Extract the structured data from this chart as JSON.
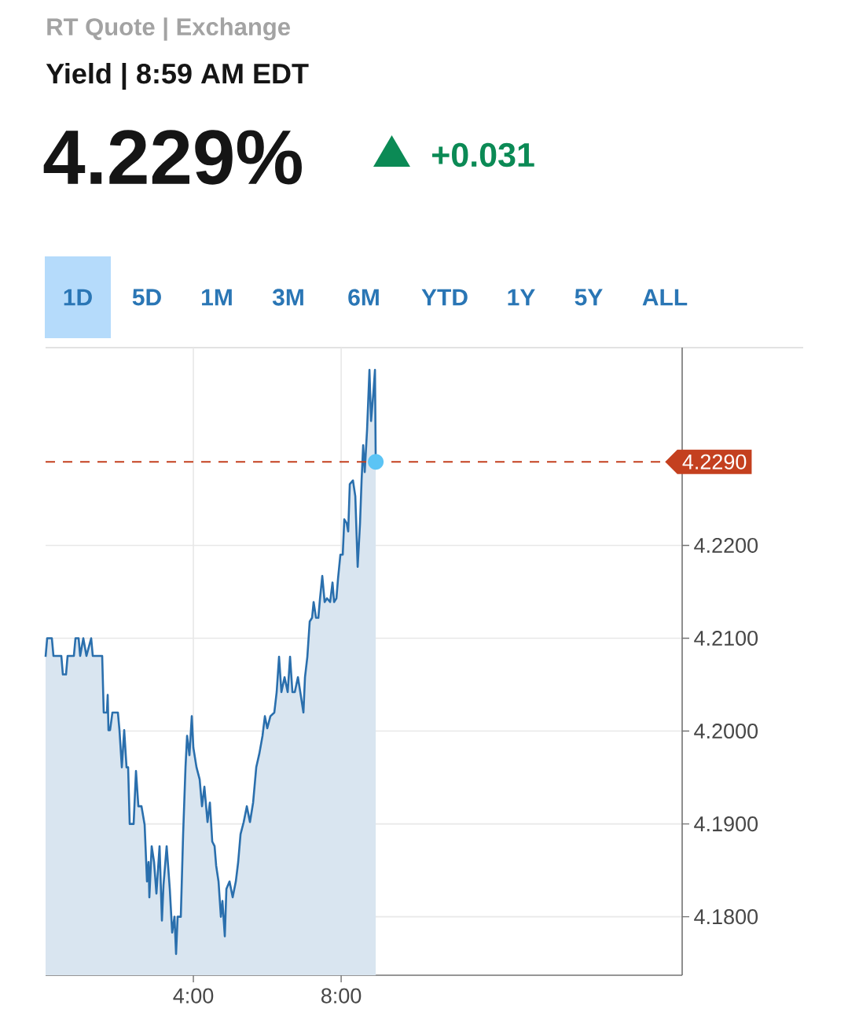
{
  "chart_data": {
    "type": "area",
    "annotations": [
      "RT Quote | Exchange",
      "Yield | 8:59 AM EDT",
      "4.229%",
      "+0.031",
      "1D",
      "5D",
      "1M",
      "3M",
      "6M",
      "YTD",
      "1Y",
      "5Y",
      "ALL"
    ],
    "xlim": [
      0,
      17.23
    ],
    "xticks": [
      {
        "value": 4,
        "label": "4:00"
      },
      {
        "value": 8,
        "label": "8:00"
      }
    ],
    "ylim": [
      4.1737,
      4.2413
    ],
    "yticks": [
      {
        "value": 4.18,
        "label": "4.1800"
      },
      {
        "value": 4.19,
        "label": "4.1900"
      },
      {
        "value": 4.2,
        "label": "4.2000"
      },
      {
        "value": 4.21,
        "label": "4.2100"
      },
      {
        "value": 4.22,
        "label": "4.2200"
      }
    ],
    "grid": true,
    "ref_lines": [
      {
        "axis": "y",
        "value": 4.229,
        "label": "4.2290",
        "color": "#c4401f",
        "line_style": "dashed"
      }
    ],
    "series": [
      {
        "color": "#2a6fad",
        "x": [
          0,
          0.043,
          0.17,
          0.213,
          0.426,
          0.468,
          0.553,
          0.596,
          0.766,
          0.809,
          0.894,
          0.936,
          1.021,
          1.106,
          1.234,
          1.277,
          1.447,
          1.532,
          1.574,
          1.66,
          1.681,
          1.702,
          1.745,
          1.809,
          1.957,
          2.0,
          2.064,
          2.128,
          2.191,
          2.234,
          2.277,
          2.383,
          2.447,
          2.511,
          2.596,
          2.681,
          2.745,
          2.787,
          2.809,
          2.872,
          2.936,
          3.0,
          3.085,
          3.149,
          3.191,
          3.277,
          3.362,
          3.426,
          3.489,
          3.532,
          3.574,
          3.66,
          3.723,
          3.787,
          3.83,
          3.894,
          3.957,
          4.0,
          4.085,
          4.17,
          4.234,
          4.298,
          4.383,
          4.447,
          4.511,
          4.574,
          4.617,
          4.681,
          4.745,
          4.787,
          4.851,
          4.894,
          4.979,
          5.064,
          5.149,
          5.213,
          5.277,
          5.362,
          5.447,
          5.532,
          5.617,
          5.702,
          5.787,
          5.872,
          5.936,
          6.0,
          6.085,
          6.191,
          6.255,
          6.319,
          6.383,
          6.468,
          6.553,
          6.617,
          6.681,
          6.745,
          6.83,
          6.894,
          6.979,
          7.021,
          7.085,
          7.149,
          7.213,
          7.255,
          7.319,
          7.383,
          7.426,
          7.489,
          7.553,
          7.617,
          7.702,
          7.766,
          7.809,
          7.872,
          7.915,
          7.979,
          8.043,
          8.085,
          8.149,
          8.191,
          8.234,
          8.319,
          8.383,
          8.447,
          8.511,
          8.553,
          8.596,
          8.638,
          8.702,
          8.766,
          8.809,
          8.872,
          8.915,
          8.936
        ],
        "values": [
          4.208,
          4.21,
          4.21,
          4.2081,
          4.2081,
          4.2061,
          4.2061,
          4.2081,
          4.2081,
          4.21,
          4.21,
          4.2081,
          4.21,
          4.2081,
          4.21,
          4.2081,
          4.2081,
          4.2081,
          4.202,
          4.202,
          4.2039,
          4.2001,
          4.2001,
          4.202,
          4.202,
          4.2001,
          4.1961,
          4.2001,
          4.1961,
          4.1961,
          4.19,
          4.19,
          4.1957,
          4.1919,
          4.1919,
          4.1899,
          4.1838,
          4.1859,
          4.1821,
          4.1876,
          4.1859,
          4.1825,
          4.1876,
          4.1796,
          4.1834,
          4.1876,
          4.183,
          4.1783,
          4.18,
          4.176,
          4.18,
          4.18,
          4.1889,
          4.1961,
          4.1995,
          4.1974,
          4.2016,
          4.1982,
          4.1961,
          4.1948,
          4.1919,
          4.194,
          4.1902,
          4.1923,
          4.1881,
          4.1876,
          4.1855,
          4.1838,
          4.18,
          4.1817,
          4.1779,
          4.183,
          4.1838,
          4.1821,
          4.1838,
          4.1859,
          4.1889,
          4.1902,
          4.1919,
          4.1902,
          4.1923,
          4.1961,
          4.1976,
          4.1995,
          4.2016,
          4.2003,
          4.2016,
          4.202,
          4.2042,
          4.208,
          4.2042,
          4.2058,
          4.2042,
          4.208,
          4.2042,
          4.2042,
          4.2058,
          4.2042,
          4.202,
          4.2058,
          4.208,
          4.2118,
          4.2122,
          4.2139,
          4.2122,
          4.2122,
          4.2142,
          4.2167,
          4.2139,
          4.2143,
          4.2139,
          4.216,
          4.2139,
          4.2143,
          4.2164,
          4.219,
          4.219,
          4.2228,
          4.2224,
          4.2215,
          4.2266,
          4.227,
          4.2253,
          4.2177,
          4.2224,
          4.227,
          4.2308,
          4.2279,
          4.2325,
          4.2389,
          4.2334,
          4.2364,
          4.2389,
          4.229
        ]
      },
      {
        "type": "scatter",
        "marker": "circle",
        "color": "#5bc4f5",
        "x": [
          8.936
        ],
        "values": [
          4.229
        ]
      }
    ]
  }
}
